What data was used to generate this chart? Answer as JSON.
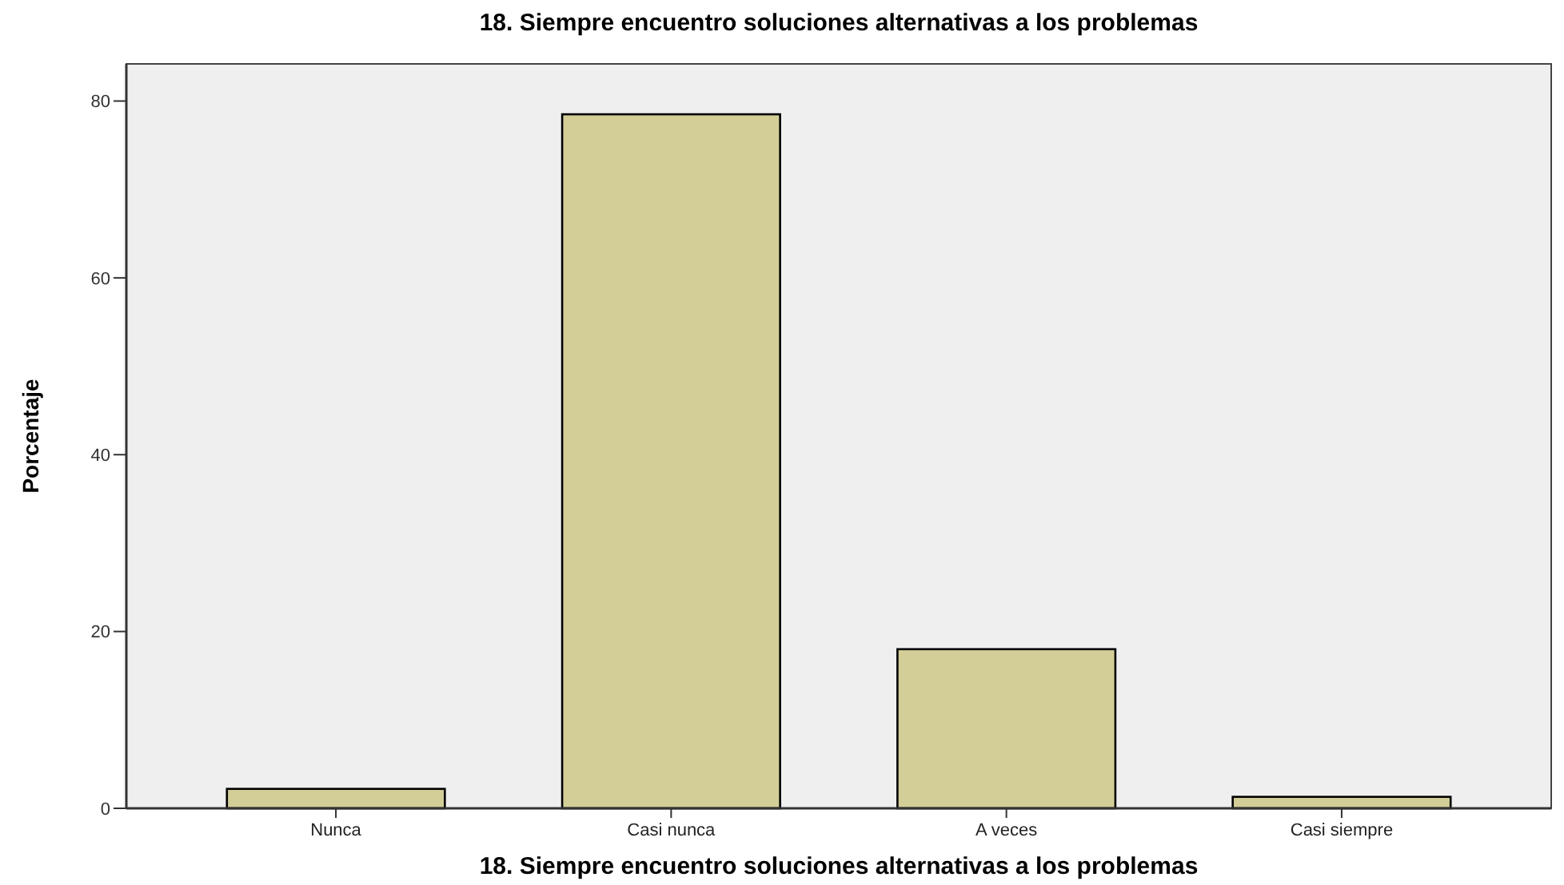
{
  "chart_data": {
    "type": "bar",
    "title": "18. Siempre encuentro soluciones alternativas a los problemas",
    "xlabel": "18. Siempre encuentro soluciones alternativas a los problemas",
    "ylabel": "Porcentaje",
    "categories": [
      "Nunca",
      "Casi nunca",
      "A veces",
      "Casi siempre"
    ],
    "values": [
      2.2,
      78.5,
      18,
      1.3
    ],
    "color": "#d3ce97",
    "ylim": [
      0,
      84.2
    ],
    "yticks": [
      0,
      20,
      40,
      60,
      80
    ],
    "grid": false
  }
}
